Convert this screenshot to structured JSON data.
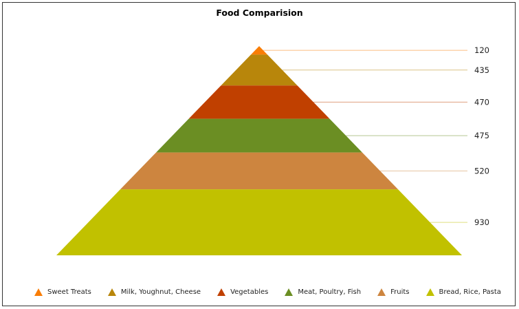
{
  "chart_data": {
    "type": "pyramid",
    "title": "Food Comparision",
    "categories": [
      "Sweet Treats",
      "Milk, Youghnut, Cheese",
      "Vegetables",
      "Meat, Poultry, Fish",
      "Fruits",
      "Bread, Rice, Pasta"
    ],
    "values": [
      120,
      435,
      470,
      475,
      520,
      930
    ],
    "labels": [
      "120",
      "435",
      "470",
      "475",
      "520",
      "930"
    ],
    "colors": [
      "#f97d06",
      "#b8860b",
      "#c04000",
      "#6b8e23",
      "#cd853f",
      "#c1c100"
    ],
    "legend_position": "bottom"
  }
}
